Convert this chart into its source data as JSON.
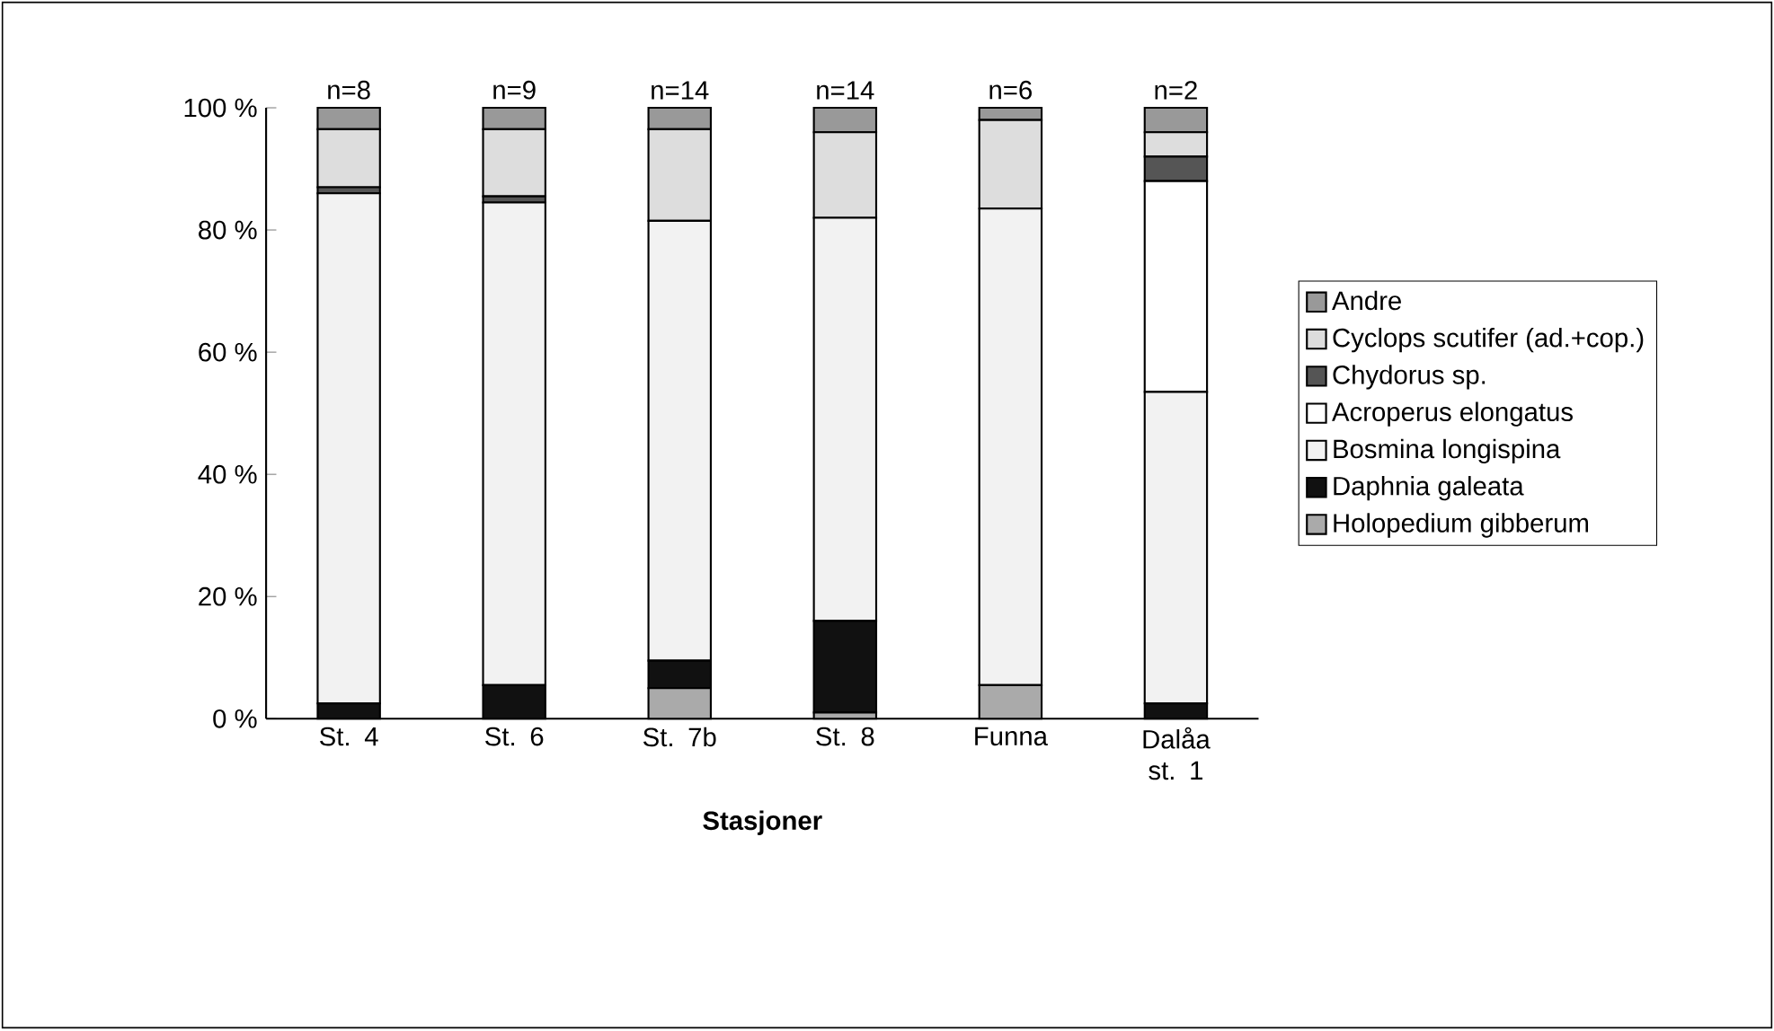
{
  "chart_data": {
    "type": "bar",
    "stacked": true,
    "xlabel": "Stasjoner",
    "categories": [
      "St. 4",
      "St. 6",
      "St. 7b",
      "St. 8",
      "Funna",
      "Dalåa st. 1"
    ],
    "series": [
      {
        "name": "Holopedium gibberum",
        "color": "#aaaaaa",
        "values": [
          0,
          0,
          5,
          1,
          5.5,
          0
        ]
      },
      {
        "name": "Daphnia galeata",
        "color": "#111111",
        "values": [
          2.5,
          5.5,
          4.5,
          15,
          0,
          2.5
        ]
      },
      {
        "name": "Bosmina longispina",
        "color": "#f2f2f2",
        "values": [
          83.5,
          79,
          72,
          66,
          78,
          51
        ]
      },
      {
        "name": "Acroperus elongatus",
        "color": "#ffffff",
        "values": [
          0,
          0,
          0,
          0,
          0,
          34.5
        ]
      },
      {
        "name": "Chydorus sp.",
        "color": "#555555",
        "values": [
          1,
          1,
          0,
          0,
          0,
          4
        ]
      },
      {
        "name": "Cyclops scutifer (ad.+cop.)",
        "color": "#dddddd",
        "values": [
          9.5,
          11,
          15,
          14,
          14.5,
          4
        ]
      },
      {
        "name": "Andre",
        "color": "#999999",
        "values": [
          3.5,
          3.5,
          3.5,
          4,
          2,
          4
        ]
      }
    ],
    "ylim": [
      0,
      100
    ],
    "yticks": [
      {
        "value": 0,
        "label": "0 %"
      },
      {
        "value": 20,
        "label": "20 %"
      },
      {
        "value": 40,
        "label": "40 %"
      },
      {
        "value": 60,
        "label": "60 %"
      },
      {
        "value": 80,
        "label": "80 %"
      },
      {
        "value": 100,
        "label": "100 %"
      }
    ],
    "annotations": [
      "n=8",
      "n=9",
      "n=14",
      "n=14",
      "n=6",
      "n=2"
    ],
    "legend": "right"
  }
}
